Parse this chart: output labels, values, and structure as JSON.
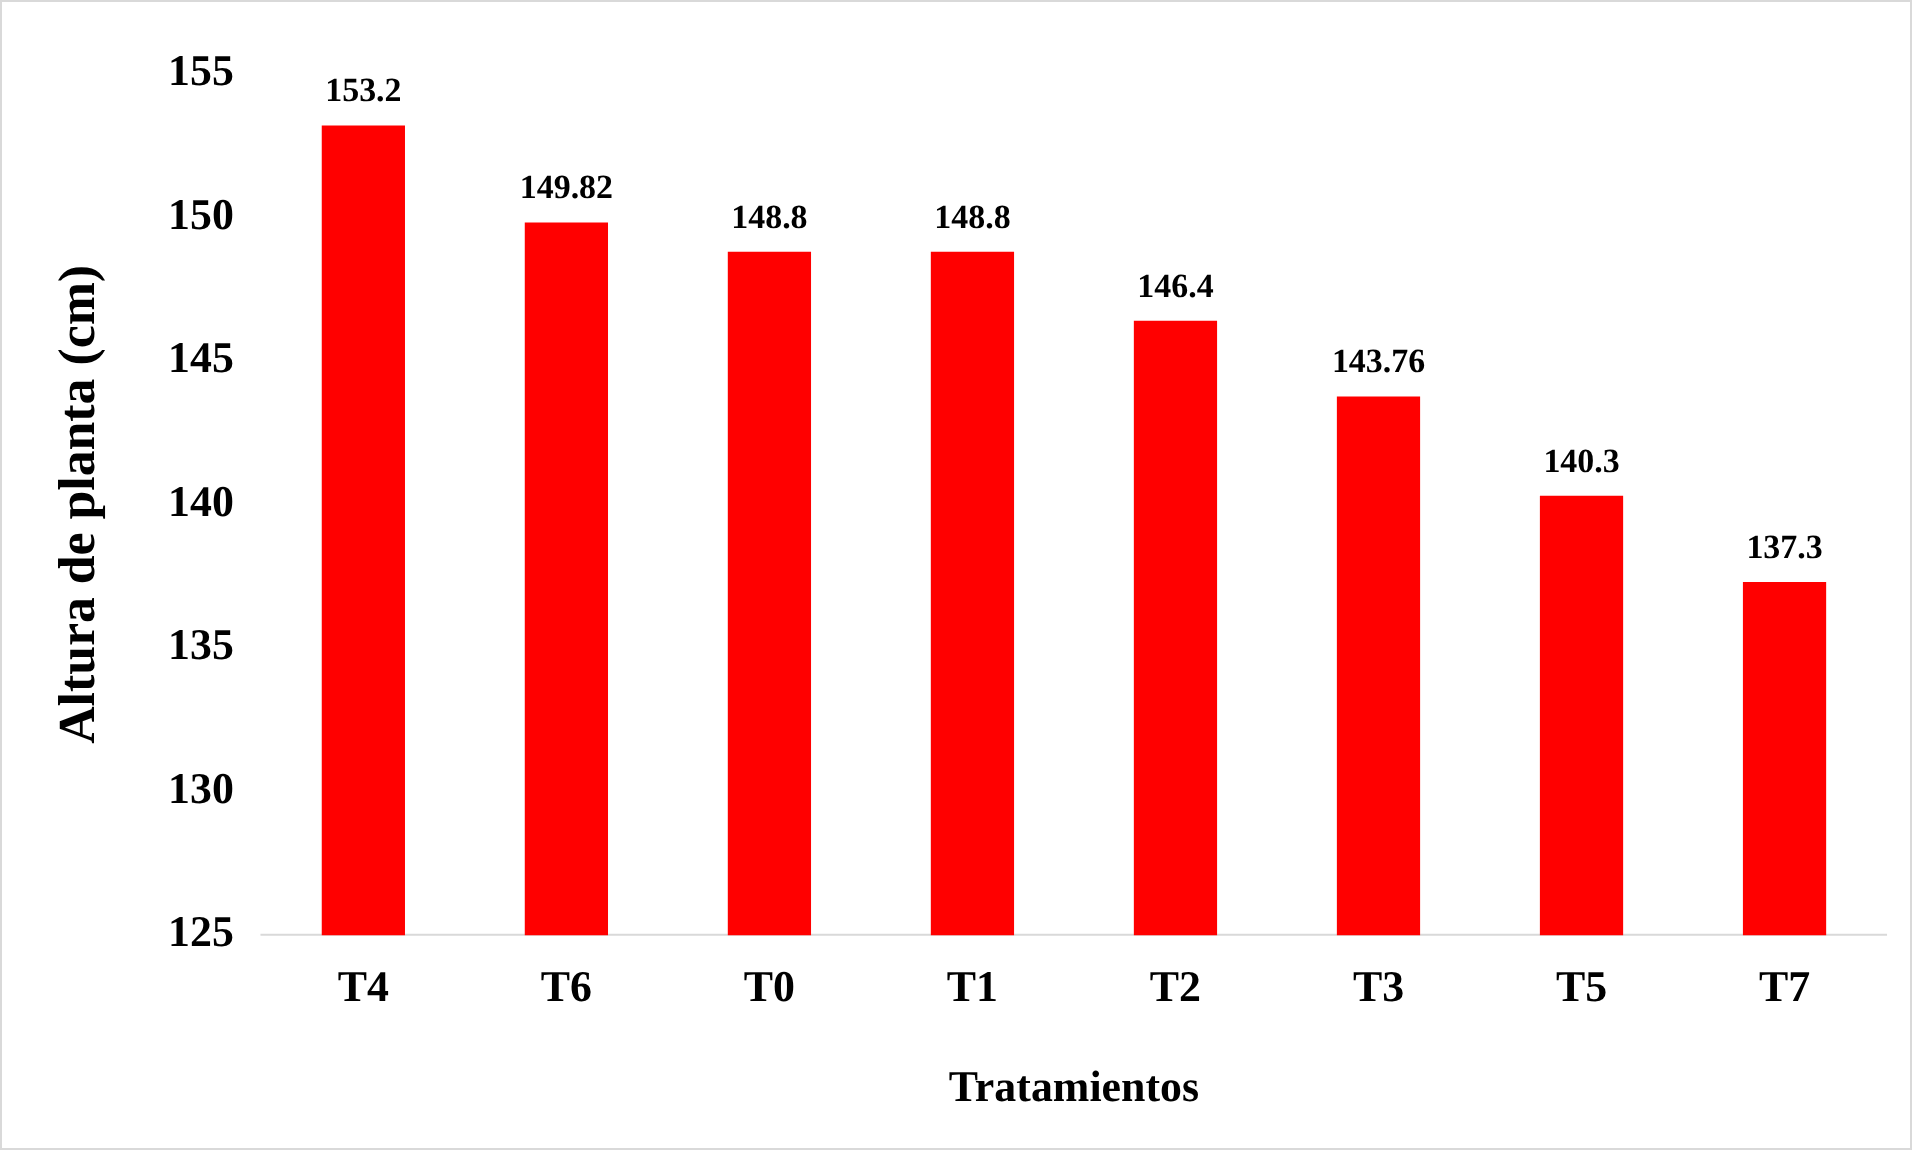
{
  "chart_data": {
    "type": "bar",
    "xlabel": "Tratamientos",
    "ylabel": "Altura de planta (cm)",
    "categories": [
      "T4",
      "T6",
      "T0",
      "T1",
      "T2",
      "T3",
      "T5",
      "T7"
    ],
    "values": [
      153.2,
      149.82,
      148.8,
      148.8,
      146.4,
      143.76,
      140.3,
      137.3
    ],
    "color": "#ff0000",
    "ylim": [
      125,
      155
    ],
    "yticks": [
      125,
      130,
      135,
      140,
      145,
      150,
      155
    ],
    "grid": false,
    "legend": false,
    "data_labels": true
  }
}
